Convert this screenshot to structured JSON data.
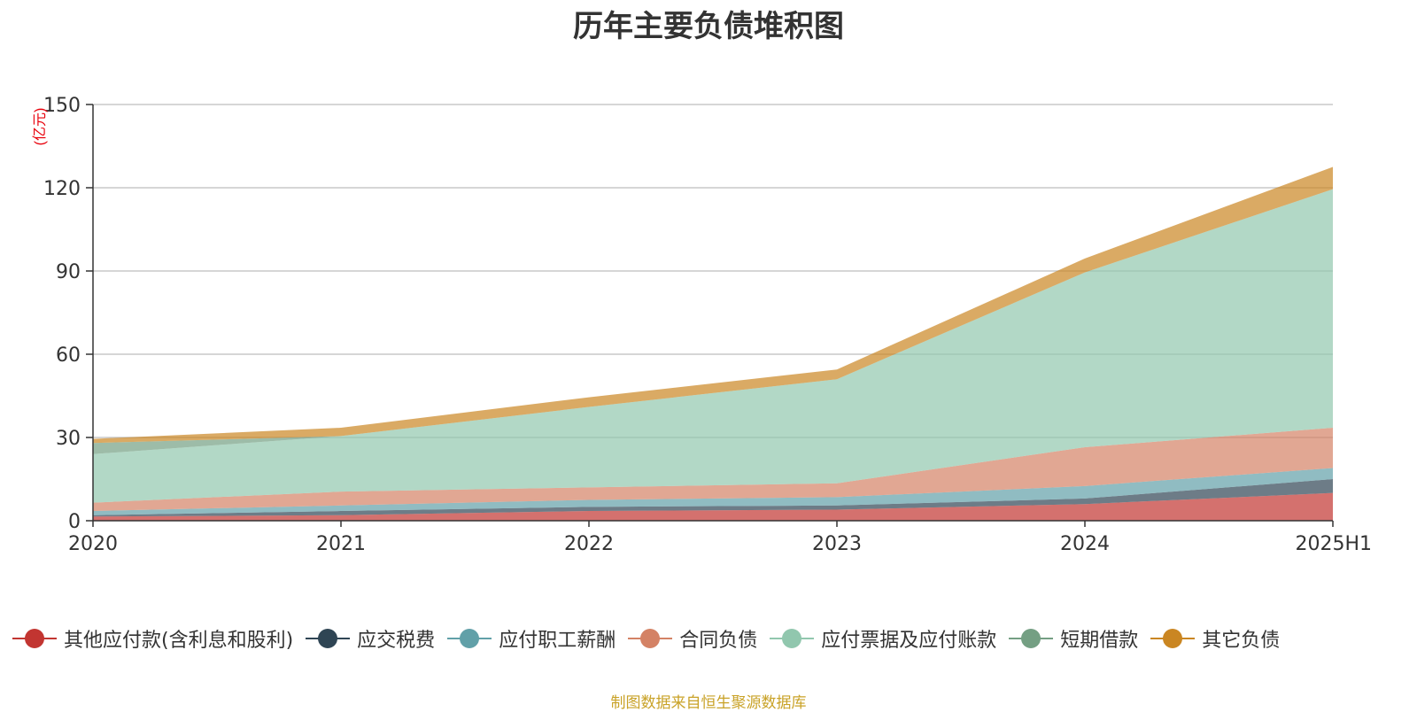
{
  "chart_data": {
    "type": "area",
    "stacked": true,
    "title": "历年主要负债堆积图",
    "ylabel": "(亿元)",
    "categories": [
      "2020",
      "2021",
      "2022",
      "2023",
      "2024",
      "2025H1"
    ],
    "ylim": [
      0,
      150
    ],
    "yticks": [
      0,
      30,
      60,
      90,
      120,
      150
    ],
    "grid": true,
    "legend_position": "bottom",
    "series": [
      {
        "name": "其他应付款(含利息和股利)",
        "color": "#c23531",
        "values": [
          1.5,
          2.0,
          3.5,
          4.0,
          6.0,
          10.0
        ]
      },
      {
        "name": "应交税费",
        "color": "#2f4554",
        "values": [
          0.5,
          1.5,
          1.5,
          1.5,
          2.0,
          5.0
        ]
      },
      {
        "name": "应付职工薪酬",
        "color": "#61a0a8",
        "values": [
          1.5,
          2.0,
          2.5,
          3.0,
          4.5,
          4.0
        ]
      },
      {
        "name": "合同负债",
        "color": "#d48265",
        "values": [
          3.0,
          5.0,
          4.5,
          5.0,
          14.0,
          14.5
        ]
      },
      {
        "name": "应付票据及应付账款",
        "color": "#91c7ae",
        "values": [
          17.5,
          20.0,
          29.0,
          37.5,
          63.0,
          86.0
        ]
      },
      {
        "name": "短期借款",
        "color": "#749f83",
        "values": [
          4.0,
          0.0,
          0.0,
          0.0,
          0.0,
          0.0
        ]
      },
      {
        "name": "其它负债",
        "color": "#ca8622",
        "values": [
          1.5,
          3.0,
          3.5,
          3.5,
          5.0,
          8.0
        ]
      }
    ]
  },
  "source": "制图数据来自恒生聚源数据库"
}
